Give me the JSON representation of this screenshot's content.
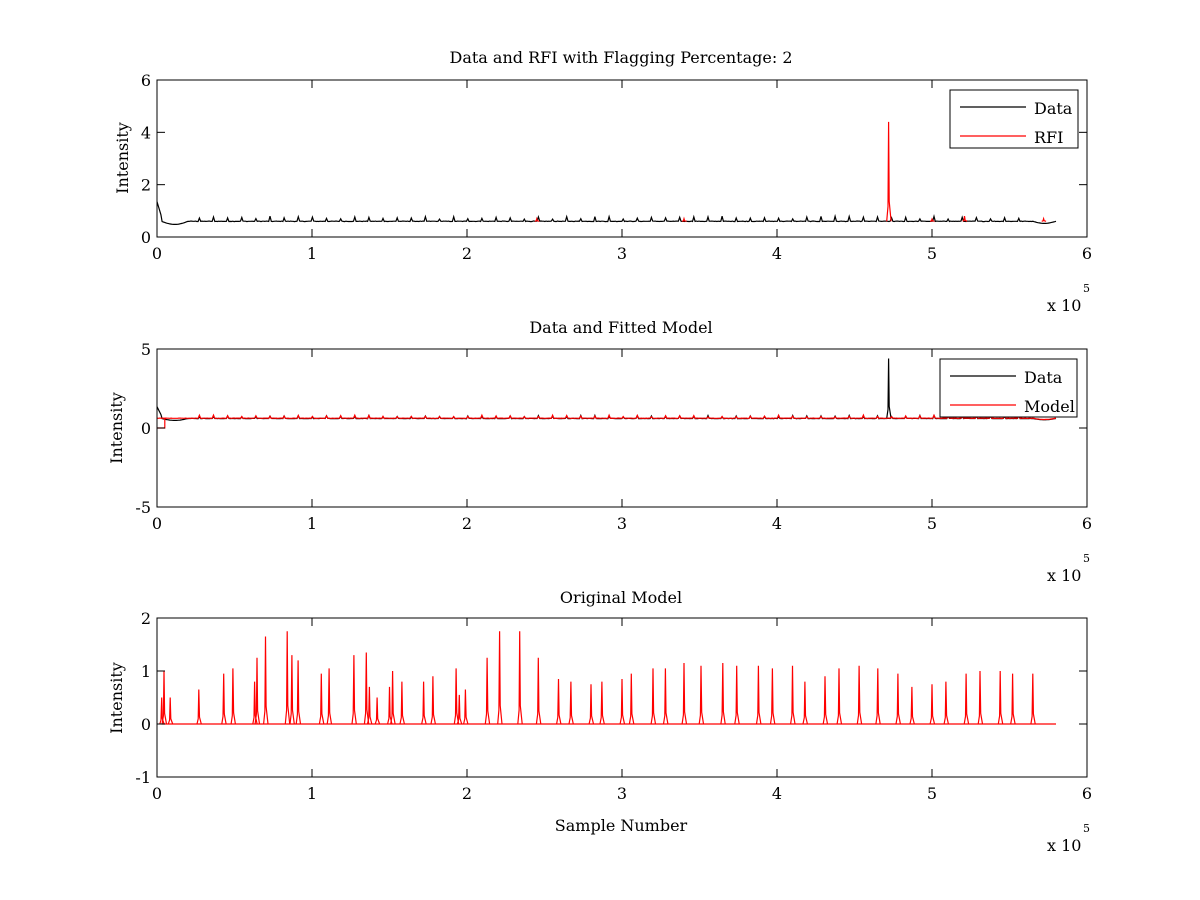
{
  "figure": {
    "background": "#ffffff",
    "axes_color": "#000000"
  },
  "chart_data": [
    {
      "type": "line",
      "title": "Data and RFI with Flagging Percentage: 2",
      "xlabel": "",
      "ylabel": "Intensity",
      "xlim": [
        0,
        6
      ],
      "ylim": [
        0,
        6
      ],
      "xticks": [
        "0",
        "1",
        "2",
        "3",
        "4",
        "5",
        "6"
      ],
      "yticks": [
        "0",
        "2",
        "4",
        "6"
      ],
      "x_exponent": {
        "base": "x 10",
        "power": "5"
      },
      "legend": {
        "position": "top-right",
        "entries": [
          {
            "label": "Data",
            "color": "#000000"
          },
          {
            "label": "RFI",
            "color": "#ff0000"
          }
        ]
      },
      "series": [
        {
          "name": "Data",
          "color": "#000000",
          "baseline": 0.6,
          "start_bump": 1.35,
          "x_end": 5.8
        },
        {
          "name": "RFI",
          "color": "#ff0000",
          "spikes": [
            [
              4.72,
              4.4
            ],
            [
              5.21,
              0.8
            ],
            [
              2.45,
              0.7
            ],
            [
              3.4,
              0.7
            ],
            [
              5.0,
              0.68
            ],
            [
              5.72,
              0.7
            ]
          ]
        }
      ]
    },
    {
      "type": "line",
      "title": "Data and Fitted Model",
      "xlabel": "",
      "ylabel": "Intensity",
      "xlim": [
        0,
        6
      ],
      "ylim": [
        -5,
        5
      ],
      "xticks": [
        "0",
        "1",
        "2",
        "3",
        "4",
        "5",
        "6"
      ],
      "yticks": [
        "-5",
        "0",
        "5"
      ],
      "x_exponent": {
        "base": "x 10",
        "power": "5"
      },
      "legend": {
        "position": "top-right",
        "entries": [
          {
            "label": "Data",
            "color": "#000000"
          },
          {
            "label": "Model",
            "color": "#ff0000"
          }
        ]
      },
      "series": [
        {
          "name": "Data",
          "color": "#000000",
          "baseline": 0.6,
          "start_bump": 1.35,
          "x_end": 5.8,
          "spikes": [
            [
              4.72,
              4.4
            ]
          ]
        },
        {
          "name": "Model",
          "color": "#ff0000",
          "baseline": 0.62,
          "x_end": 5.8
        }
      ]
    },
    {
      "type": "line",
      "title": "Original Model",
      "xlabel": "Sample Number",
      "ylabel": "Intensity",
      "xlim": [
        0,
        6
      ],
      "ylim": [
        -1,
        2
      ],
      "xticks": [
        "0",
        "1",
        "2",
        "3",
        "4",
        "5",
        "6"
      ],
      "yticks": [
        "-1",
        "0",
        "1",
        "2"
      ],
      "x_exponent": {
        "base": "x 10",
        "power": "5"
      },
      "series": [
        {
          "name": "Model",
          "color": "#ff0000",
          "x_start": 0.03,
          "x_end": 5.8,
          "spikes": [
            [
              0.03,
              0.5
            ],
            [
              0.045,
              1.0
            ],
            [
              0.085,
              0.5
            ],
            [
              0.27,
              0.65
            ],
            [
              0.43,
              0.95
            ],
            [
              0.49,
              1.05
            ],
            [
              0.63,
              0.8
            ],
            [
              0.645,
              1.25
            ],
            [
              0.7,
              1.65
            ],
            [
              0.84,
              1.75
            ],
            [
              0.87,
              1.3
            ],
            [
              0.91,
              1.2
            ],
            [
              1.06,
              0.95
            ],
            [
              1.11,
              1.05
            ],
            [
              1.27,
              1.3
            ],
            [
              1.35,
              1.35
            ],
            [
              1.37,
              0.7
            ],
            [
              1.42,
              0.5
            ],
            [
              1.5,
              0.7
            ],
            [
              1.52,
              1.0
            ],
            [
              1.58,
              0.8
            ],
            [
              1.72,
              0.8
            ],
            [
              1.78,
              0.9
            ],
            [
              1.93,
              1.05
            ],
            [
              1.95,
              0.55
            ],
            [
              1.99,
              0.65
            ],
            [
              2.13,
              1.25
            ],
            [
              2.21,
              1.75
            ],
            [
              2.34,
              1.75
            ],
            [
              2.46,
              1.25
            ],
            [
              2.59,
              0.85
            ],
            [
              2.67,
              0.8
            ],
            [
              2.8,
              0.75
            ],
            [
              2.87,
              0.8
            ],
            [
              3.0,
              0.85
            ],
            [
              3.06,
              0.95
            ],
            [
              3.2,
              1.05
            ],
            [
              3.28,
              1.05
            ],
            [
              3.4,
              1.15
            ],
            [
              3.51,
              1.1
            ],
            [
              3.65,
              1.15
            ],
            [
              3.74,
              1.1
            ],
            [
              3.88,
              1.1
            ],
            [
              3.97,
              1.05
            ],
            [
              4.1,
              1.1
            ],
            [
              4.18,
              0.8
            ],
            [
              4.31,
              0.9
            ],
            [
              4.4,
              1.05
            ],
            [
              4.53,
              1.1
            ],
            [
              4.65,
              1.05
            ],
            [
              4.78,
              0.95
            ],
            [
              4.87,
              0.7
            ],
            [
              5.0,
              0.75
            ],
            [
              5.09,
              0.8
            ],
            [
              5.22,
              0.95
            ],
            [
              5.31,
              1.0
            ],
            [
              5.44,
              1.0
            ],
            [
              5.52,
              0.95
            ],
            [
              5.65,
              0.95
            ]
          ]
        }
      ]
    }
  ]
}
